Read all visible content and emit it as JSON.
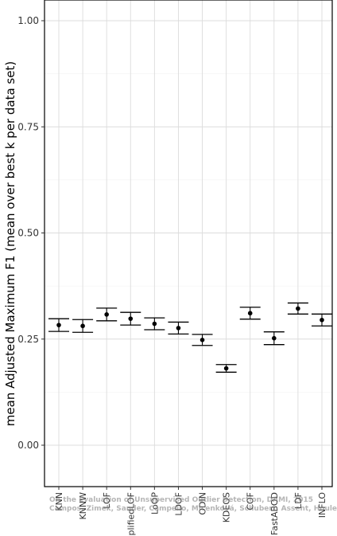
{
  "chart_data": {
    "type": "scatter",
    "ylabel": "mean Adjusted Maximum F1 (mean over best k per data set)",
    "ylim": [
      -0.05,
      1.05
    ],
    "yticks": [
      "0.00",
      "0.25",
      "0.50",
      "0.75",
      "1.00"
    ],
    "ytick_values": [
      0.0,
      0.25,
      0.5,
      0.75,
      1.0
    ],
    "categories": [
      "KNN",
      "KNNW",
      "LOF",
      "SimplifiedLOF",
      "LoOP",
      "LDOF",
      "ODIN",
      "KDEOS",
      "COF",
      "FastABOD",
      "LDF",
      "INFLO"
    ],
    "series": [
      {
        "values": [
          0.283,
          0.281,
          0.308,
          0.298,
          0.286,
          0.276,
          0.248,
          0.181,
          0.311,
          0.252,
          0.322,
          0.295
        ],
        "lower": [
          0.268,
          0.266,
          0.293,
          0.283,
          0.272,
          0.262,
          0.235,
          0.172,
          0.297,
          0.237,
          0.309,
          0.281
        ],
        "upper": [
          0.298,
          0.296,
          0.323,
          0.313,
          0.3,
          0.29,
          0.261,
          0.19,
          0.325,
          0.267,
          0.335,
          0.309
        ]
      }
    ],
    "grid": true,
    "legend": "none"
  },
  "watermark": {
    "line1": "On the Evaluation of Unsupervised Outlier Detection, DAMI, 2015",
    "line2": "Campos, Zimek, Sander, Campello, Micenková, Schubert, Assent, Houle"
  }
}
